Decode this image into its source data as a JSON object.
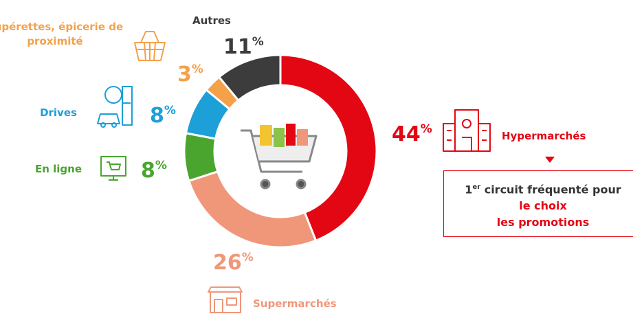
{
  "chart_data": {
    "type": "donut",
    "categories": [
      "Hypermarchés",
      "Supermarchés",
      "En ligne",
      "Drives",
      "Supérettes, épicerie de proximité",
      "Autres"
    ],
    "values": [
      44,
      26,
      8,
      8,
      3,
      11
    ],
    "value_labels": [
      "44%",
      "26%",
      "8%",
      "8%",
      "3%",
      "11%"
    ],
    "colors": [
      "#e30613",
      "#f0977a",
      "#4aa52e",
      "#1d9fd8",
      "#f4a14a",
      "#3c3c3c"
    ],
    "annotation": {
      "ordinal": "1",
      "ordinal_suffix": "er",
      "text": "circuit fréquenté pour",
      "highlights": [
        "le choix",
        "les promotions"
      ]
    }
  }
}
